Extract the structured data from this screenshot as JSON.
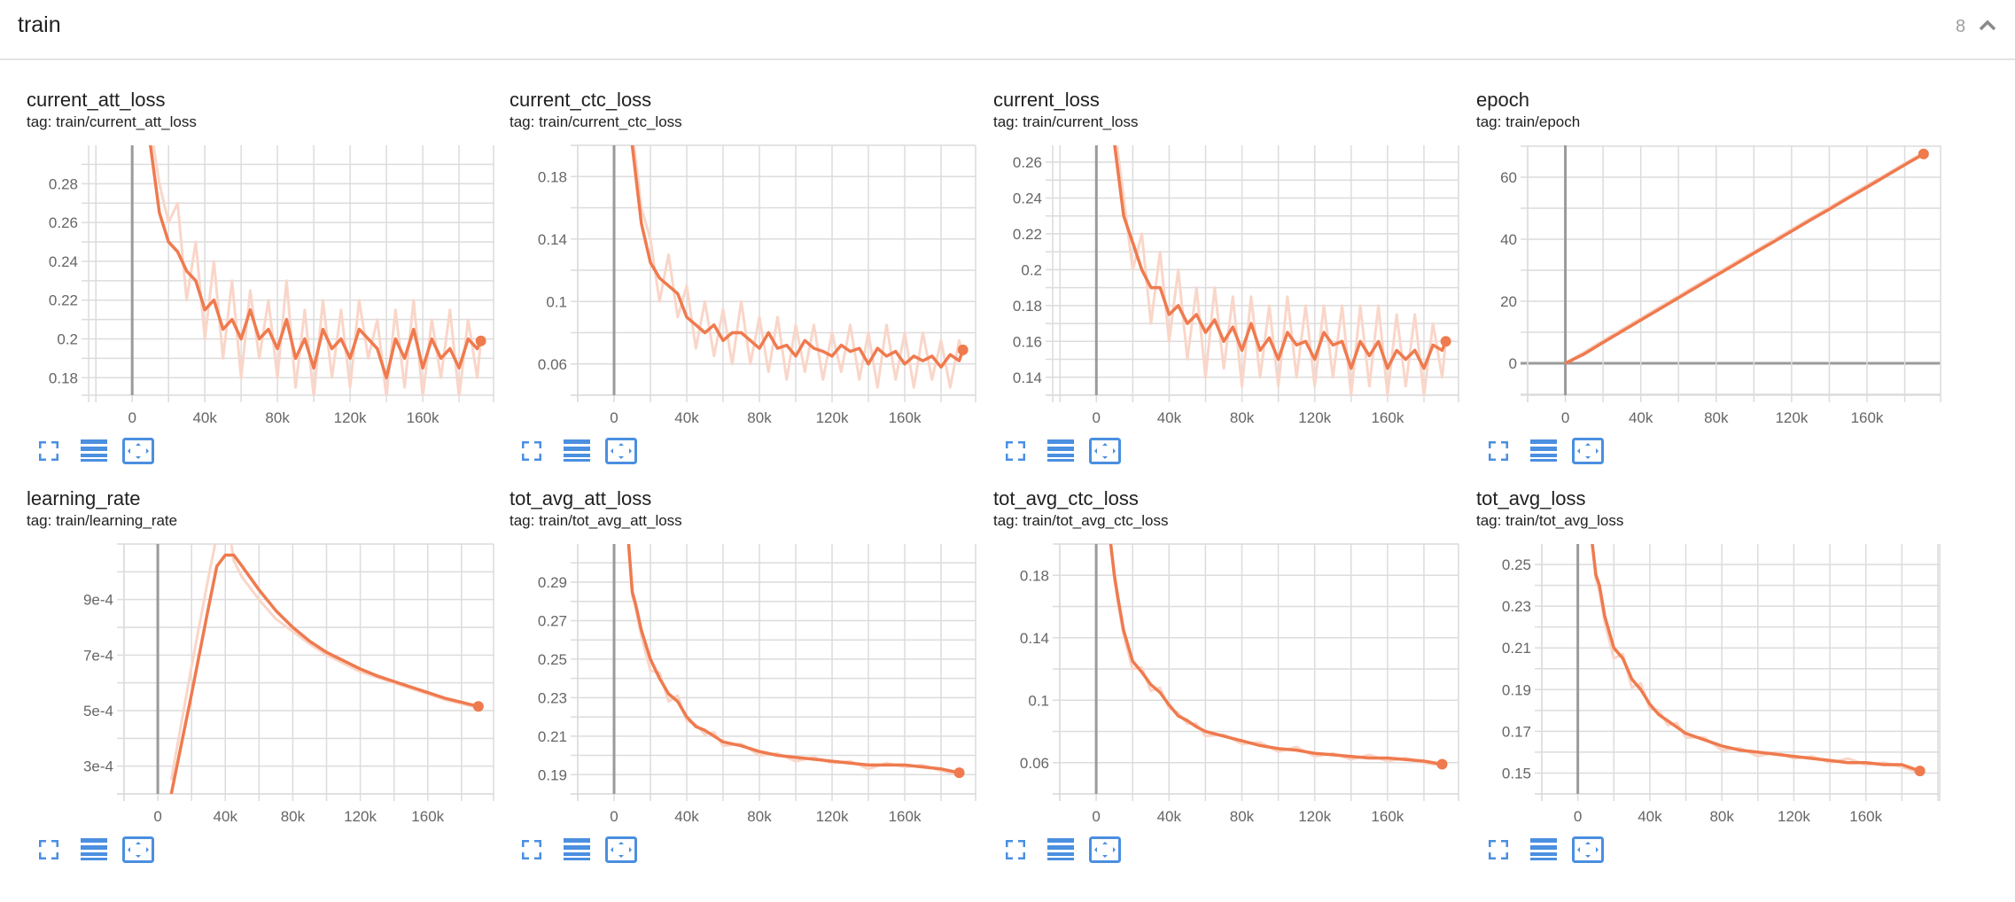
{
  "header": {
    "title": "train",
    "count": "8",
    "collapse_icon": "chevron-up-icon"
  },
  "colors": {
    "line": "#ef7a4e",
    "raw": "#f9d6c9",
    "grid": "#dcdcdc",
    "axis_zero": "#9a9a9a",
    "icon": "#4a8fe0"
  },
  "card_actions": [
    "fullscreen-icon",
    "toggle-log-scale-icon",
    "fit-domain-icon"
  ],
  "cards": [
    {
      "title": "current_att_loss",
      "tag": "tag: train/current_att_loss"
    },
    {
      "title": "current_ctc_loss",
      "tag": "tag: train/current_ctc_loss"
    },
    {
      "title": "current_loss",
      "tag": "tag: train/current_loss"
    },
    {
      "title": "epoch",
      "tag": "tag: train/epoch"
    },
    {
      "title": "learning_rate",
      "tag": "tag: train/learning_rate"
    },
    {
      "title": "tot_avg_att_loss",
      "tag": "tag: train/tot_avg_att_loss"
    },
    {
      "title": "tot_avg_ctc_loss",
      "tag": "tag: train/tot_avg_ctc_loss"
    },
    {
      "title": "tot_avg_loss",
      "tag": "tag: train/tot_avg_loss"
    }
  ],
  "chart_data": [
    {
      "type": "line",
      "grid": true,
      "xlim": [
        -24000,
        199000
      ],
      "ylim": [
        0.171,
        0.2998
      ],
      "xgrid_step": 20000,
      "ygrid_step": 0.01,
      "xticks": [
        0,
        40000,
        80000,
        120000,
        160000
      ],
      "xtick_labels": [
        "0",
        "40k",
        "80k",
        "120k",
        "160k"
      ],
      "yticks": [
        0.18,
        0.2,
        0.22,
        0.24,
        0.26,
        0.28
      ],
      "ytick_labels": [
        "0.18",
        "0.2",
        "0.22",
        "0.24",
        "0.26",
        "0.28"
      ],
      "x": [
        10000,
        15000,
        20000,
        25000,
        30000,
        35000,
        40000,
        45000,
        50000,
        55000,
        60000,
        65000,
        70000,
        75000,
        80000,
        85000,
        90000,
        95000,
        100000,
        105000,
        110000,
        115000,
        120000,
        125000,
        130000,
        135000,
        140000,
        145000,
        150000,
        155000,
        160000,
        165000,
        170000,
        175000,
        180000,
        185000,
        190000,
        192000
      ],
      "values": [
        0.3,
        0.265,
        0.25,
        0.245,
        0.235,
        0.23,
        0.215,
        0.22,
        0.205,
        0.21,
        0.2,
        0.215,
        0.2,
        0.205,
        0.195,
        0.21,
        0.19,
        0.2,
        0.185,
        0.205,
        0.195,
        0.2,
        0.19,
        0.205,
        0.2,
        0.195,
        0.18,
        0.2,
        0.19,
        0.205,
        0.185,
        0.2,
        0.19,
        0.195,
        0.185,
        0.2,
        0.195,
        0.199
      ],
      "raw_values": [
        0.31,
        0.28,
        0.26,
        0.27,
        0.22,
        0.25,
        0.2,
        0.24,
        0.19,
        0.23,
        0.18,
        0.225,
        0.19,
        0.22,
        0.18,
        0.23,
        0.175,
        0.215,
        0.17,
        0.22,
        0.18,
        0.215,
        0.175,
        0.22,
        0.19,
        0.21,
        0.17,
        0.215,
        0.175,
        0.22,
        0.17,
        0.21,
        0.18,
        0.215,
        0.17,
        0.21,
        0.18,
        0.2
      ]
    },
    {
      "type": "line",
      "grid": true,
      "xlim": [
        -20000,
        199000
      ],
      "ylim": [
        0.04,
        0.2
      ],
      "xgrid_step": 20000,
      "ygrid_step": 0.02,
      "xticks": [
        0,
        40000,
        80000,
        120000,
        160000
      ],
      "xtick_labels": [
        "0",
        "40k",
        "80k",
        "120k",
        "160k"
      ],
      "yticks": [
        0.06,
        0.1,
        0.14,
        0.18
      ],
      "ytick_labels": [
        "0.06",
        "0.1",
        "0.14",
        "0.18"
      ],
      "x": [
        10000,
        15000,
        20000,
        25000,
        30000,
        35000,
        40000,
        45000,
        50000,
        55000,
        60000,
        65000,
        70000,
        75000,
        80000,
        85000,
        90000,
        95000,
        100000,
        105000,
        110000,
        115000,
        120000,
        125000,
        130000,
        135000,
        140000,
        145000,
        150000,
        155000,
        160000,
        165000,
        170000,
        175000,
        180000,
        185000,
        190000,
        192000
      ],
      "values": [
        0.2,
        0.15,
        0.125,
        0.115,
        0.11,
        0.105,
        0.09,
        0.085,
        0.08,
        0.085,
        0.075,
        0.08,
        0.08,
        0.075,
        0.07,
        0.08,
        0.07,
        0.072,
        0.065,
        0.075,
        0.07,
        0.068,
        0.065,
        0.072,
        0.068,
        0.07,
        0.06,
        0.07,
        0.065,
        0.068,
        0.06,
        0.065,
        0.062,
        0.065,
        0.058,
        0.066,
        0.062,
        0.069
      ],
      "raw_values": [
        0.21,
        0.16,
        0.14,
        0.1,
        0.13,
        0.09,
        0.11,
        0.07,
        0.1,
        0.065,
        0.095,
        0.06,
        0.1,
        0.06,
        0.09,
        0.055,
        0.09,
        0.05,
        0.085,
        0.055,
        0.085,
        0.05,
        0.08,
        0.055,
        0.085,
        0.05,
        0.08,
        0.045,
        0.085,
        0.05,
        0.08,
        0.045,
        0.08,
        0.05,
        0.075,
        0.045,
        0.075,
        0.065
      ]
    },
    {
      "type": "line",
      "grid": true,
      "xlim": [
        -24000,
        199000
      ],
      "ylim": [
        0.13,
        0.2694
      ],
      "xgrid_step": 20000,
      "ygrid_step": 0.01,
      "xticks": [
        0,
        40000,
        80000,
        120000,
        160000
      ],
      "xtick_labels": [
        "0",
        "40k",
        "80k",
        "120k",
        "160k"
      ],
      "yticks": [
        0.14,
        0.16,
        0.18,
        0.2,
        0.22,
        0.24,
        0.26
      ],
      "ytick_labels": [
        "0.14",
        "0.16",
        "0.18",
        "0.2",
        "0.22",
        "0.24",
        "0.26"
      ],
      "x": [
        10000,
        15000,
        20000,
        25000,
        30000,
        35000,
        40000,
        45000,
        50000,
        55000,
        60000,
        65000,
        70000,
        75000,
        80000,
        85000,
        90000,
        95000,
        100000,
        105000,
        110000,
        115000,
        120000,
        125000,
        130000,
        135000,
        140000,
        145000,
        150000,
        155000,
        160000,
        165000,
        170000,
        175000,
        180000,
        185000,
        190000,
        192000
      ],
      "values": [
        0.27,
        0.23,
        0.215,
        0.2,
        0.19,
        0.19,
        0.175,
        0.18,
        0.17,
        0.175,
        0.165,
        0.172,
        0.16,
        0.168,
        0.155,
        0.17,
        0.155,
        0.162,
        0.15,
        0.165,
        0.158,
        0.16,
        0.15,
        0.165,
        0.158,
        0.16,
        0.145,
        0.16,
        0.152,
        0.16,
        0.145,
        0.155,
        0.15,
        0.155,
        0.145,
        0.158,
        0.155,
        0.16
      ],
      "raw_values": [
        0.28,
        0.24,
        0.2,
        0.22,
        0.17,
        0.21,
        0.16,
        0.2,
        0.15,
        0.19,
        0.14,
        0.19,
        0.145,
        0.185,
        0.135,
        0.185,
        0.14,
        0.18,
        0.135,
        0.185,
        0.14,
        0.18,
        0.135,
        0.18,
        0.14,
        0.18,
        0.13,
        0.18,
        0.135,
        0.18,
        0.13,
        0.175,
        0.135,
        0.175,
        0.13,
        0.17,
        0.14,
        0.16
      ]
    },
    {
      "type": "line",
      "grid": true,
      "xlim": [
        -20000,
        199000
      ],
      "ylim": [
        -10.3,
        70.3
      ],
      "xgrid_step": 20000,
      "ygrid_step": 10,
      "xticks": [
        0,
        40000,
        80000,
        120000,
        160000
      ],
      "xtick_labels": [
        "0",
        "40k",
        "80k",
        "120k",
        "160k"
      ],
      "yticks": [
        0,
        20,
        40,
        60
      ],
      "ytick_labels": [
        "0",
        "20",
        "40",
        "60"
      ],
      "x": [
        0,
        10000,
        20000,
        30000,
        40000,
        50000,
        60000,
        70000,
        80000,
        90000,
        100000,
        110000,
        120000,
        130000,
        140000,
        150000,
        160000,
        170000,
        180000,
        190000
      ],
      "values": [
        0,
        3.0,
        6.7,
        10.3,
        13.9,
        17.5,
        21.1,
        24.7,
        28.3,
        31.9,
        35.5,
        39.0,
        42.6,
        46.2,
        49.7,
        53.3,
        56.8,
        60.4,
        64.0,
        67.5
      ],
      "raw_values": [
        0,
        3.6,
        7.3,
        10.9,
        14.5,
        18.1,
        21.7,
        25.3,
        28.9,
        32.5,
        36.0,
        39.6,
        43.2,
        46.7,
        50.3,
        53.8,
        57.4,
        60.9,
        64.5,
        67.9
      ]
    },
    {
      "type": "line",
      "grid": true,
      "xlim": [
        -20000,
        199000
      ],
      "ylim": [
        0.0002,
        0.0011
      ],
      "xgrid_step": 20000,
      "ygrid_step": 0.0001,
      "xticks": [
        0,
        40000,
        80000,
        120000,
        160000
      ],
      "xtick_labels": [
        "0",
        "40k",
        "80k",
        "120k",
        "160k"
      ],
      "yticks": [
        0.0003,
        0.0005,
        0.0007,
        0.0009
      ],
      "ytick_labels": [
        "3e-4",
        "5e-4",
        "7e-4",
        "9e-4"
      ],
      "x": [
        8000,
        10000,
        20000,
        30000,
        35000,
        40000,
        45000,
        50000,
        60000,
        70000,
        80000,
        90000,
        100000,
        110000,
        120000,
        130000,
        140000,
        150000,
        160000,
        170000,
        180000,
        190000
      ],
      "values": [
        0.0002,
        0.00026,
        0.00056,
        0.00087,
        0.00102,
        0.00106,
        0.00106,
        0.00102,
        0.000935,
        0.00086,
        0.0008,
        0.00075,
        0.00071,
        0.00068,
        0.00065,
        0.000625,
        0.000605,
        0.000585,
        0.000565,
        0.000545,
        0.00053,
        0.000515
      ],
      "raw_values": [
        0.00025,
        0.00032,
        0.00066,
        0.00098,
        0.00113,
        0.00125,
        0.00104,
        0.00098,
        0.0009,
        0.00083,
        0.000785,
        0.00074,
        0.0007,
        0.00067,
        0.00064,
        0.00062,
        0.0006,
        0.00058,
        0.00056,
        0.00054,
        0.000525,
        0.00051
      ]
    },
    {
      "type": "line",
      "grid": true,
      "xlim": [
        -20000,
        199000
      ],
      "ylim": [
        0.18,
        0.3098
      ],
      "xgrid_step": 20000,
      "ygrid_step": 0.01,
      "xticks": [
        0,
        40000,
        80000,
        120000,
        160000
      ],
      "xtick_labels": [
        "0",
        "40k",
        "80k",
        "120k",
        "160k"
      ],
      "yticks": [
        0.19,
        0.21,
        0.23,
        0.25,
        0.27,
        0.29
      ],
      "ytick_labels": [
        "0.19",
        "0.21",
        "0.23",
        "0.25",
        "0.27",
        "0.29"
      ],
      "x": [
        8000,
        10000,
        12000,
        15000,
        20000,
        25000,
        30000,
        35000,
        40000,
        45000,
        50000,
        55000,
        60000,
        70000,
        80000,
        90000,
        100000,
        110000,
        120000,
        130000,
        140000,
        150000,
        160000,
        170000,
        180000,
        190000
      ],
      "values": [
        0.31,
        0.285,
        0.278,
        0.265,
        0.25,
        0.24,
        0.232,
        0.228,
        0.22,
        0.215,
        0.213,
        0.21,
        0.207,
        0.205,
        0.202,
        0.2,
        0.199,
        0.198,
        0.197,
        0.196,
        0.195,
        0.195,
        0.195,
        0.194,
        0.193,
        0.191
      ],
      "raw_values": [
        0.31,
        0.283,
        0.276,
        0.262,
        0.244,
        0.243,
        0.228,
        0.231,
        0.218,
        0.216,
        0.211,
        0.212,
        0.205,
        0.206,
        0.2,
        0.201,
        0.197,
        0.199,
        0.196,
        0.197,
        0.193,
        0.196,
        0.194,
        0.195,
        0.192,
        0.19
      ]
    },
    {
      "type": "line",
      "grid": true,
      "xlim": [
        -20000,
        199000
      ],
      "ylim": [
        0.04,
        0.2
      ],
      "xgrid_step": 20000,
      "ygrid_step": 0.02,
      "xticks": [
        0,
        40000,
        80000,
        120000,
        160000
      ],
      "xtick_labels": [
        "0",
        "40k",
        "80k",
        "120k",
        "160k"
      ],
      "yticks": [
        0.06,
        0.1,
        0.14,
        0.18
      ],
      "ytick_labels": [
        "0.06",
        "0.1",
        "0.14",
        "0.18"
      ],
      "x": [
        8000,
        10000,
        12000,
        15000,
        20000,
        25000,
        30000,
        35000,
        40000,
        45000,
        50000,
        55000,
        60000,
        70000,
        80000,
        90000,
        100000,
        110000,
        120000,
        130000,
        140000,
        150000,
        160000,
        170000,
        180000,
        190000
      ],
      "values": [
        0.2,
        0.18,
        0.165,
        0.145,
        0.125,
        0.118,
        0.11,
        0.105,
        0.097,
        0.09,
        0.087,
        0.083,
        0.08,
        0.077,
        0.074,
        0.071,
        0.069,
        0.068,
        0.066,
        0.065,
        0.064,
        0.063,
        0.063,
        0.062,
        0.061,
        0.059
      ],
      "raw_values": [
        0.2,
        0.178,
        0.162,
        0.142,
        0.12,
        0.121,
        0.106,
        0.108,
        0.095,
        0.092,
        0.085,
        0.085,
        0.077,
        0.078,
        0.072,
        0.073,
        0.067,
        0.07,
        0.064,
        0.066,
        0.062,
        0.065,
        0.061,
        0.063,
        0.06,
        0.058
      ]
    },
    {
      "type": "line",
      "grid": true,
      "xlim": [
        -20000,
        201000
      ],
      "ylim": [
        0.14,
        0.2598
      ],
      "xgrid_step": 20000,
      "ygrid_step": 0.01,
      "xticks": [
        0,
        40000,
        80000,
        120000,
        160000
      ],
      "xtick_labels": [
        "0",
        "40k",
        "80k",
        "120k",
        "160k"
      ],
      "yticks": [
        0.15,
        0.17,
        0.19,
        0.21,
        0.23,
        0.25
      ],
      "ytick_labels": [
        "0.15",
        "0.17",
        "0.19",
        "0.21",
        "0.23",
        "0.25"
      ],
      "x": [
        8000,
        10000,
        12000,
        15000,
        20000,
        25000,
        30000,
        35000,
        40000,
        45000,
        50000,
        55000,
        60000,
        70000,
        80000,
        90000,
        100000,
        110000,
        120000,
        130000,
        140000,
        150000,
        160000,
        170000,
        180000,
        190000
      ],
      "values": [
        0.26,
        0.245,
        0.24,
        0.225,
        0.21,
        0.205,
        0.195,
        0.19,
        0.183,
        0.178,
        0.175,
        0.172,
        0.169,
        0.166,
        0.163,
        0.161,
        0.16,
        0.159,
        0.158,
        0.157,
        0.156,
        0.155,
        0.155,
        0.154,
        0.154,
        0.151
      ],
      "raw_values": [
        0.26,
        0.243,
        0.237,
        0.222,
        0.205,
        0.207,
        0.191,
        0.193,
        0.181,
        0.18,
        0.173,
        0.174,
        0.167,
        0.167,
        0.161,
        0.162,
        0.158,
        0.16,
        0.157,
        0.158,
        0.155,
        0.157,
        0.154,
        0.155,
        0.153,
        0.15
      ]
    }
  ]
}
